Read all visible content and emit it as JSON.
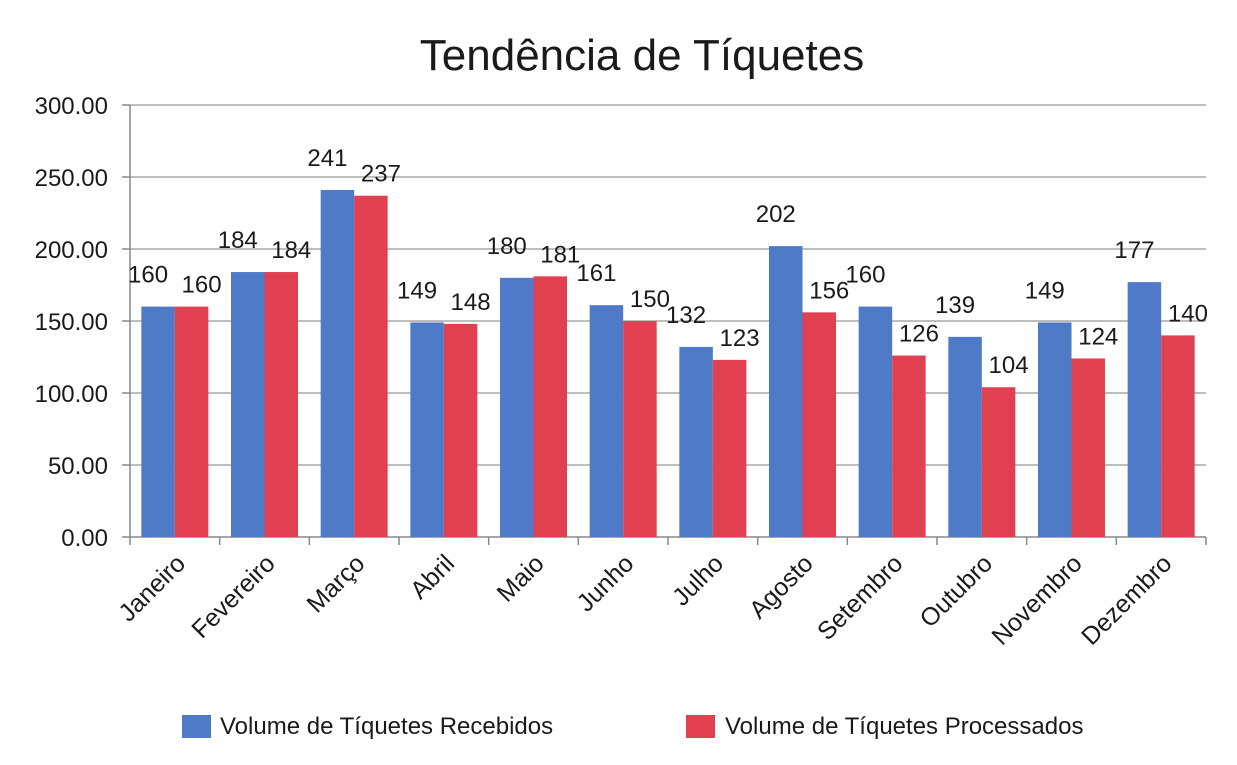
{
  "chart_data": {
    "type": "bar",
    "title": "Tendência de Tíquetes",
    "xlabel": "",
    "ylabel": "",
    "ylim": [
      0,
      300
    ],
    "yticks": [
      "0.00",
      "50.00",
      "100.00",
      "150.00",
      "200.00",
      "250.00",
      "300.00"
    ],
    "grid": true,
    "legend": "bottom",
    "categories": [
      "Janeiro",
      "Fevereiro",
      "Março",
      "Abril",
      "Maio",
      "Junho",
      "Julho",
      "Agosto",
      "Setembro",
      "Outubro",
      "Novembro",
      "Dezembro"
    ],
    "series": [
      {
        "name": "Volume de Tíquetes Recebidos",
        "color": "#4f7ac7",
        "values": [
          160,
          184,
          241,
          149,
          180,
          161,
          132,
          202,
          160,
          139,
          149,
          177
        ],
        "labels": [
          "160",
          "184",
          "241",
          "149",
          "180",
          "161",
          "132",
          "202",
          "160",
          "139",
          "149",
          "177"
        ]
      },
      {
        "name": "Volume de Tíquetes Processados",
        "color": "#e04050",
        "values": [
          160,
          184,
          237,
          148,
          181,
          150,
          123,
          156,
          126,
          104,
          124,
          140
        ],
        "labels": [
          "160",
          "184",
          "237",
          "148",
          "181",
          "150",
          "123",
          "156",
          "126",
          "104",
          "124",
          "140"
        ]
      }
    ]
  }
}
